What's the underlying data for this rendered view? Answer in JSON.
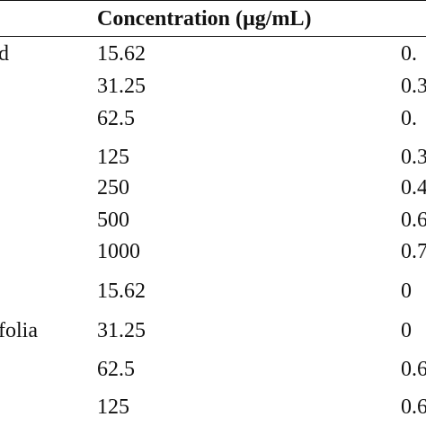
{
  "table": {
    "header": {
      "concentration": "Concentration (µg/mL)"
    },
    "rows": [
      {
        "sample": "d",
        "concentration": "15.62",
        "value": "0."
      },
      {
        "sample": "",
        "concentration": "31.25",
        "value": "0.3"
      },
      {
        "sample": "",
        "concentration": "62.5",
        "value": "0."
      },
      {
        "sample": "",
        "concentration": "125",
        "value": "0.3"
      },
      {
        "sample": "",
        "concentration": "250",
        "value": "0.4"
      },
      {
        "sample": "",
        "concentration": "500",
        "value": "0.6"
      },
      {
        "sample": "",
        "concentration": "1000",
        "value": "0.7"
      },
      {
        "sample": "",
        "concentration": "15.62",
        "value": "0"
      },
      {
        "sample": "folia",
        "concentration": "31.25",
        "value": "0"
      },
      {
        "sample": "",
        "concentration": "62.5",
        "value": "0.6"
      },
      {
        "sample": "",
        "concentration": "125",
        "value": "0.6"
      }
    ]
  }
}
